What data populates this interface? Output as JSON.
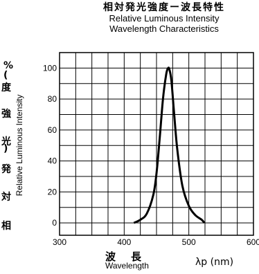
{
  "title": {
    "ja": "相対発光強度ー波長特性",
    "en_line1": "Relative Luminous Intensity",
    "en_line2": "Wavelength Characteristics"
  },
  "chart_data": {
    "type": "line",
    "title": "Relative Luminous Intensity Wavelength Characteristics",
    "ylabel_ja": "相対発光強度(%)",
    "ylabel_en": "Relative Luminous Intensity",
    "xlabel_ja": "波長",
    "xlabel_en": "Wavelength",
    "xunit": "λp (nm)",
    "xlim": [
      300,
      600
    ],
    "ylim": [
      0,
      100
    ],
    "xticks": [
      "300",
      "400",
      "500",
      "600"
    ],
    "yticks": [
      "0",
      "20",
      "40",
      "60",
      "80",
      "100"
    ],
    "grid": true,
    "series": [
      {
        "x": [
          415,
          425,
          435,
          445,
          450,
          455,
          460,
          465,
          468,
          470,
          473,
          477,
          482,
          490,
          500,
          510,
          520,
          524
        ],
        "y": [
          0,
          2,
          6,
          18,
          32,
          55,
          80,
          96,
          100,
          99,
          92,
          72,
          48,
          24,
          11,
          5,
          2,
          0
        ]
      }
    ]
  }
}
